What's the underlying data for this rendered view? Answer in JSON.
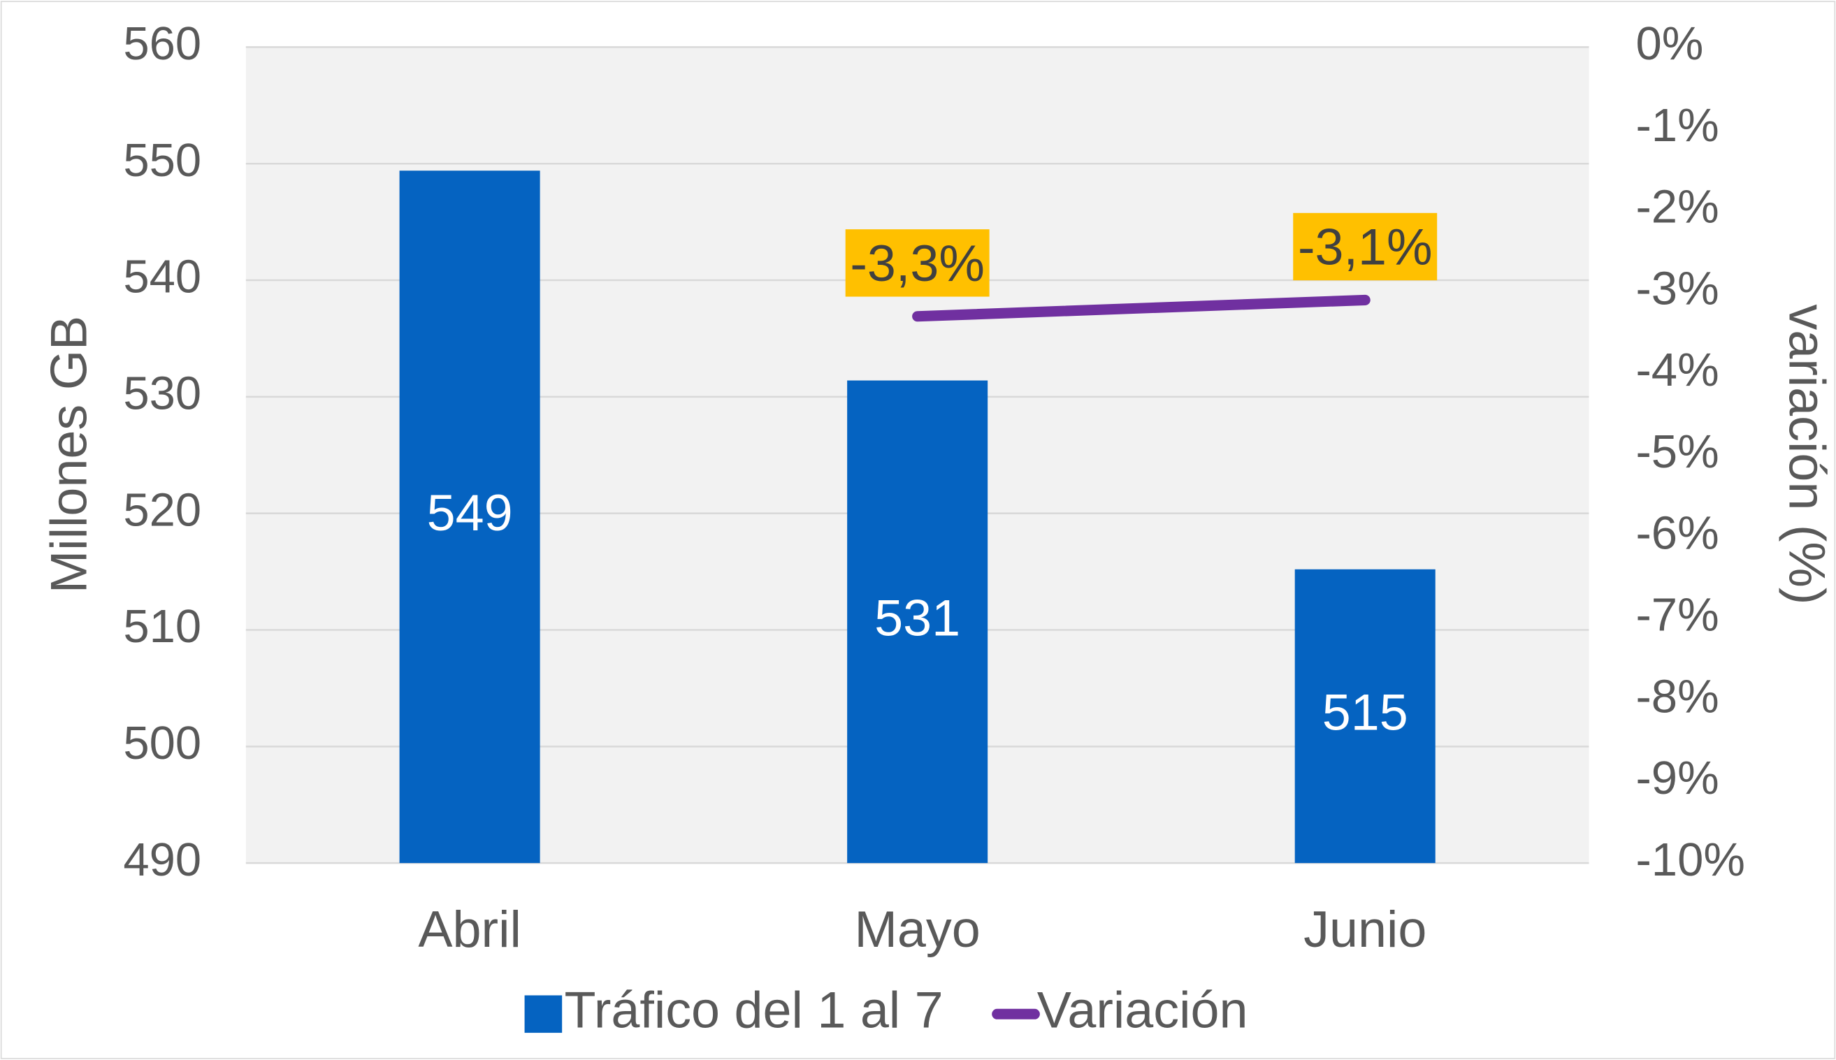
{
  "chart_data": {
    "type": "bar",
    "categories": [
      "Abril",
      "Mayo",
      "Junio"
    ],
    "series": [
      {
        "name": "Tráfico del 1 al 7",
        "type": "bar",
        "color": "#0563c1",
        "values": [
          549.4,
          531.4,
          515.2
        ],
        "value_labels": [
          "549",
          "531",
          "515"
        ]
      },
      {
        "name": "Variación",
        "type": "line",
        "axis": "y2",
        "color": "#7030a0",
        "values": [
          null,
          -3.3,
          -3.1
        ],
        "value_labels": [
          null,
          "-3,3%",
          "-3,1%"
        ],
        "label_color": "#ffc000"
      }
    ],
    "ylabel": "Millones GB",
    "y2label": "variación (%)",
    "ylim": [
      490,
      560
    ],
    "yticks": [
      490,
      500,
      510,
      520,
      530,
      540,
      550,
      560
    ],
    "y2lim": [
      -10,
      0
    ],
    "y2ticks": [
      {
        "value": -10,
        "label": "-10%"
      },
      {
        "value": -9,
        "label": "-9%"
      },
      {
        "value": -8,
        "label": "-8%"
      },
      {
        "value": -7,
        "label": "-7%"
      },
      {
        "value": -6,
        "label": "-6%"
      },
      {
        "value": -5,
        "label": "-5%"
      },
      {
        "value": -4,
        "label": "-4%"
      },
      {
        "value": -3,
        "label": "-3%"
      },
      {
        "value": -2,
        "label": "-2%"
      },
      {
        "value": -1,
        "label": "-1%"
      },
      {
        "value": 0,
        "label": "0%"
      }
    ],
    "grid": true,
    "legend": "bottom"
  }
}
